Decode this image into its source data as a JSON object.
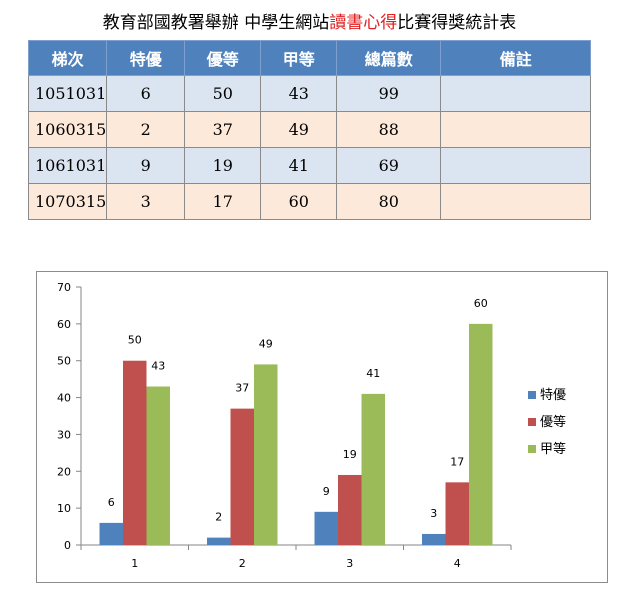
{
  "title": {
    "part1": "教育部國教署舉辦 中學生網站",
    "highlight": "讀書心得",
    "part2": "比賽得獎統計表"
  },
  "table": {
    "headers": [
      "梯次",
      "特優",
      "優等",
      "甲等",
      "總篇數",
      "備註"
    ],
    "rows": [
      [
        "1051031",
        "6",
        "50",
        "43",
        "99",
        ""
      ],
      [
        "1060315",
        "2",
        "37",
        "49",
        "88",
        ""
      ],
      [
        "1061031",
        "9",
        "19",
        "41",
        "69",
        ""
      ],
      [
        "1070315",
        "3",
        "17",
        "60",
        "80",
        ""
      ]
    ]
  },
  "colors": {
    "header_bg": "#4f81bd",
    "row_blue": "#dbe5f1",
    "row_peach": "#fde9d9",
    "title_highlight": "#e02020"
  },
  "chart_data": {
    "type": "bar",
    "categories": [
      "1",
      "2",
      "3",
      "4"
    ],
    "series": [
      {
        "name": "特優",
        "values": [
          6,
          2,
          9,
          3
        ],
        "color": "#4f81bd"
      },
      {
        "name": "優等",
        "values": [
          50,
          37,
          19,
          17
        ],
        "color": "#c0504d"
      },
      {
        "name": "甲等",
        "values": [
          43,
          49,
          41,
          60
        ],
        "color": "#9bbb59"
      }
    ],
    "ylim": [
      0,
      70
    ],
    "yticks": [
      0,
      10,
      20,
      30,
      40,
      50,
      60,
      70
    ],
    "grid": false,
    "legend": "right",
    "data_labels": true
  }
}
